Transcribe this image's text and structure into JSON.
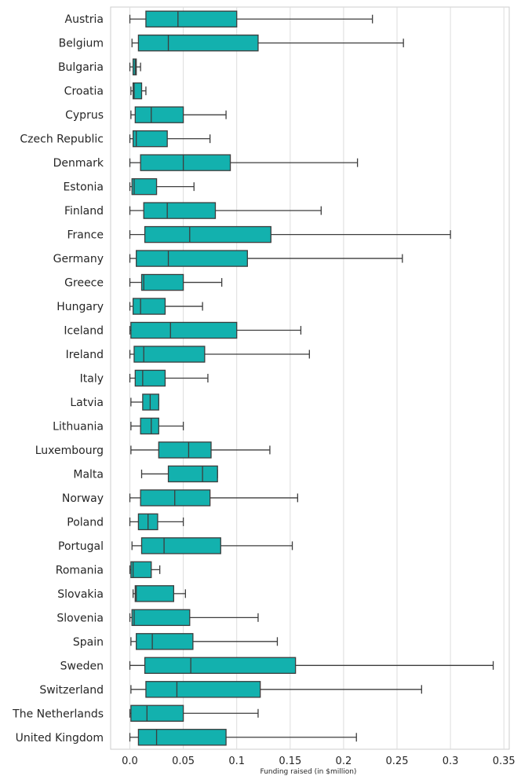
{
  "chart_data": {
    "type": "boxplot",
    "orientation": "horizontal",
    "title": "",
    "xlabel": "Funding raised (in $million)",
    "ylabel": "",
    "xlim": [
      -0.018,
      0.355
    ],
    "xticks": [
      0.0,
      0.05,
      0.1,
      0.15,
      0.2,
      0.25,
      0.3,
      0.35
    ],
    "xtick_labels": [
      "0.0",
      "0.05",
      "0.1",
      "0.15",
      "0.2",
      "0.25",
      "0.3",
      "0.35"
    ],
    "grid": "vertical",
    "box_color": "#13b1ae",
    "line_color": "#3d3d3d",
    "categories": [
      "Austria",
      "Belgium",
      "Bulgaria",
      "Croatia",
      "Cyprus",
      "Czech Republic",
      "Denmark",
      "Estonia",
      "Finland",
      "France",
      "Germany",
      "Greece",
      "Hungary",
      "Iceland",
      "Ireland",
      "Italy",
      "Latvia",
      "Lithuania",
      "Luxembourg",
      "Malta",
      "Norway",
      "Poland",
      "Portugal",
      "Romania",
      "Slovakia",
      "Slovenia",
      "Spain",
      "Sweden",
      "Switzerland",
      "The Netherlands",
      "United Kingdom"
    ],
    "boxes": [
      {
        "whislo": 0.0,
        "q1": 0.015,
        "med": 0.045,
        "q3": 0.1,
        "whishi": 0.227
      },
      {
        "whislo": 0.002,
        "q1": 0.008,
        "med": 0.036,
        "q3": 0.12,
        "whishi": 0.256
      },
      {
        "whislo": 0.0,
        "q1": 0.003,
        "med": 0.005,
        "q3": 0.006,
        "whishi": 0.01
      },
      {
        "whislo": 0.001,
        "q1": 0.003,
        "med": 0.004,
        "q3": 0.011,
        "whishi": 0.015
      },
      {
        "whislo": 0.001,
        "q1": 0.005,
        "med": 0.02,
        "q3": 0.05,
        "whishi": 0.09
      },
      {
        "whislo": 0.0,
        "q1": 0.003,
        "med": 0.006,
        "q3": 0.035,
        "whishi": 0.075
      },
      {
        "whislo": 0.0,
        "q1": 0.01,
        "med": 0.05,
        "q3": 0.094,
        "whishi": 0.213
      },
      {
        "whislo": 0.0,
        "q1": 0.002,
        "med": 0.004,
        "q3": 0.025,
        "whishi": 0.06
      },
      {
        "whislo": 0.0,
        "q1": 0.013,
        "med": 0.035,
        "q3": 0.08,
        "whishi": 0.179
      },
      {
        "whislo": 0.0,
        "q1": 0.014,
        "med": 0.056,
        "q3": 0.132,
        "whishi": 0.3
      },
      {
        "whislo": 0.0,
        "q1": 0.006,
        "med": 0.036,
        "q3": 0.11,
        "whishi": 0.255
      },
      {
        "whislo": 0.0,
        "q1": 0.011,
        "med": 0.013,
        "q3": 0.05,
        "whishi": 0.086
      },
      {
        "whislo": 0.0,
        "q1": 0.003,
        "med": 0.01,
        "q3": 0.033,
        "whishi": 0.068
      },
      {
        "whislo": 0.0,
        "q1": 0.001,
        "med": 0.038,
        "q3": 0.1,
        "whishi": 0.16
      },
      {
        "whislo": 0.0,
        "q1": 0.004,
        "med": 0.013,
        "q3": 0.07,
        "whishi": 0.168
      },
      {
        "whislo": 0.0,
        "q1": 0.005,
        "med": 0.012,
        "q3": 0.033,
        "whishi": 0.073
      },
      {
        "whislo": 0.001,
        "q1": 0.012,
        "med": 0.019,
        "q3": 0.027,
        "whishi": 0.027
      },
      {
        "whislo": 0.001,
        "q1": 0.01,
        "med": 0.02,
        "q3": 0.027,
        "whishi": 0.05
      },
      {
        "whislo": 0.001,
        "q1": 0.027,
        "med": 0.055,
        "q3": 0.076,
        "whishi": 0.131
      },
      {
        "whislo": 0.011,
        "q1": 0.036,
        "med": 0.068,
        "q3": 0.082,
        "whishi": 0.082
      },
      {
        "whislo": 0.0,
        "q1": 0.01,
        "med": 0.042,
        "q3": 0.075,
        "whishi": 0.157
      },
      {
        "whislo": 0.0,
        "q1": 0.008,
        "med": 0.017,
        "q3": 0.026,
        "whishi": 0.05
      },
      {
        "whislo": 0.002,
        "q1": 0.011,
        "med": 0.032,
        "q3": 0.085,
        "whishi": 0.152
      },
      {
        "whislo": 0.0,
        "q1": 0.001,
        "med": 0.003,
        "q3": 0.02,
        "whishi": 0.028
      },
      {
        "whislo": 0.003,
        "q1": 0.005,
        "med": 0.006,
        "q3": 0.041,
        "whishi": 0.052
      },
      {
        "whislo": 0.0,
        "q1": 0.002,
        "med": 0.004,
        "q3": 0.056,
        "whishi": 0.12
      },
      {
        "whislo": 0.001,
        "q1": 0.006,
        "med": 0.021,
        "q3": 0.059,
        "whishi": 0.138
      },
      {
        "whislo": 0.0,
        "q1": 0.014,
        "med": 0.057,
        "q3": 0.155,
        "whishi": 0.34
      },
      {
        "whislo": 0.001,
        "q1": 0.015,
        "med": 0.044,
        "q3": 0.122,
        "whishi": 0.273
      },
      {
        "whislo": 0.0,
        "q1": 0.001,
        "med": 0.016,
        "q3": 0.05,
        "whishi": 0.12
      },
      {
        "whislo": 0.0,
        "q1": 0.008,
        "med": 0.025,
        "q3": 0.09,
        "whishi": 0.212
      }
    ]
  }
}
